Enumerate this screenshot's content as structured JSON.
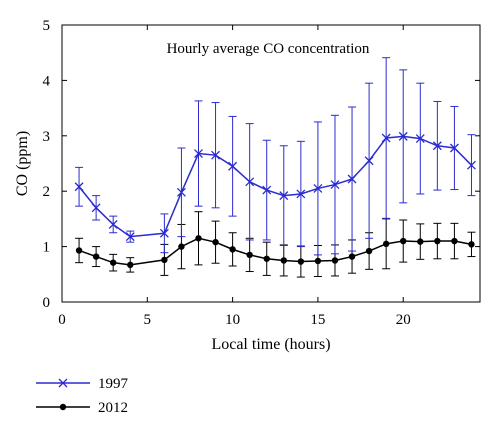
{
  "chart_data": {
    "type": "line",
    "title": "Hourly average CO concentration",
    "xlabel": "Local time (hours)",
    "ylabel": "CO (ppm)",
    "xlim": [
      0,
      24.5
    ],
    "ylim": [
      0,
      5
    ],
    "xticks": [
      0,
      5,
      10,
      15,
      20
    ],
    "yticks": [
      0,
      1,
      2,
      3,
      4,
      5
    ],
    "grid": false,
    "legend_position": "bottom-left-outside",
    "series": [
      {
        "name": "1997",
        "color": "#2b2bd1",
        "marker": "x",
        "x": [
          1,
          2,
          3,
          4,
          6,
          7,
          8,
          9,
          10,
          11,
          12,
          13,
          14,
          15,
          16,
          17,
          18,
          19,
          20,
          21,
          22,
          23,
          24
        ],
        "y": [
          2.08,
          1.7,
          1.4,
          1.18,
          1.24,
          1.98,
          2.68,
          2.65,
          2.45,
          2.17,
          2.02,
          1.92,
          1.95,
          2.05,
          2.12,
          2.22,
          2.55,
          2.96,
          2.99,
          2.95,
          2.82,
          2.78,
          2.47
        ],
        "err": [
          0.35,
          0.22,
          0.15,
          0.1,
          0.35,
          0.8,
          0.95,
          0.95,
          0.9,
          1.05,
          0.9,
          0.9,
          0.95,
          1.2,
          1.25,
          1.3,
          1.4,
          1.45,
          1.2,
          1.0,
          0.8,
          0.75,
          0.55
        ]
      },
      {
        "name": "2012",
        "color": "#000000",
        "marker": "o",
        "x": [
          1,
          2,
          3,
          4,
          6,
          7,
          8,
          9,
          10,
          11,
          12,
          13,
          14,
          15,
          16,
          17,
          18,
          19,
          20,
          21,
          22,
          23,
          24
        ],
        "y": [
          0.93,
          0.82,
          0.71,
          0.67,
          0.76,
          1.0,
          1.15,
          1.08,
          0.95,
          0.85,
          0.78,
          0.75,
          0.73,
          0.74,
          0.75,
          0.82,
          0.92,
          1.05,
          1.1,
          1.09,
          1.1,
          1.1,
          1.04
        ],
        "err": [
          0.22,
          0.18,
          0.15,
          0.13,
          0.28,
          0.4,
          0.48,
          0.38,
          0.3,
          0.3,
          0.3,
          0.28,
          0.28,
          0.28,
          0.28,
          0.3,
          0.33,
          0.45,
          0.38,
          0.32,
          0.32,
          0.32,
          0.22
        ]
      }
    ]
  }
}
